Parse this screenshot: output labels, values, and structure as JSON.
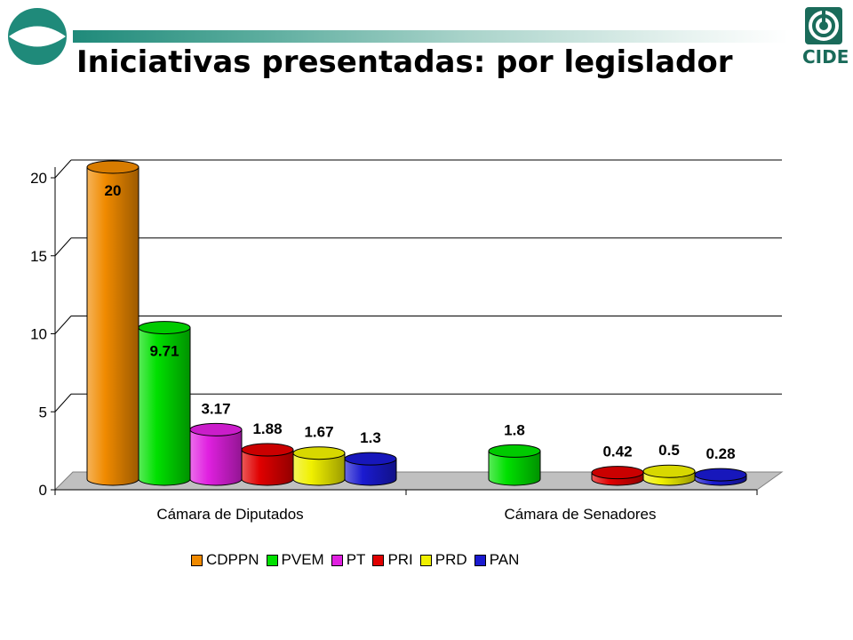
{
  "header": {
    "title": "Iniciativas presentadas: por legislador",
    "logo_text": "CIDE"
  },
  "colors": {
    "CDPPN": "#f08a00",
    "PVEM": "#00e000",
    "PT": "#e020e0",
    "PRI": "#e00000",
    "PRD": "#f0f000",
    "PAN": "#1a1ad0",
    "floor": "#c0c0c0",
    "header_teal": "#1f8a7a"
  },
  "chart_data": {
    "type": "bar",
    "title": "",
    "xlabel": "",
    "ylabel": "",
    "ylim": [
      0,
      20
    ],
    "yticks": [
      "0",
      "5",
      "10",
      "15",
      "20"
    ],
    "categories": [
      "Cámara de Diputados",
      "Cámara de Senadores"
    ],
    "series": [
      {
        "name": "CDPPN",
        "values": [
          20,
          null
        ],
        "labels": [
          "20",
          ""
        ]
      },
      {
        "name": "PVEM",
        "values": [
          9.71,
          1.8
        ],
        "labels": [
          "9.71",
          "1.8"
        ]
      },
      {
        "name": "PT",
        "values": [
          3.17,
          null
        ],
        "labels": [
          "3.17",
          ""
        ]
      },
      {
        "name": "PRI",
        "values": [
          1.88,
          0.42
        ],
        "labels": [
          "1.88",
          "0.42"
        ]
      },
      {
        "name": "PRD",
        "values": [
          1.67,
          0.5
        ],
        "labels": [
          "1.67",
          "0.5"
        ]
      },
      {
        "name": "PAN",
        "values": [
          1.3,
          0.28
        ],
        "labels": [
          "1.3",
          "0.28"
        ]
      }
    ],
    "grid": true,
    "legend": "bottom",
    "style": "3d-cylinder"
  }
}
